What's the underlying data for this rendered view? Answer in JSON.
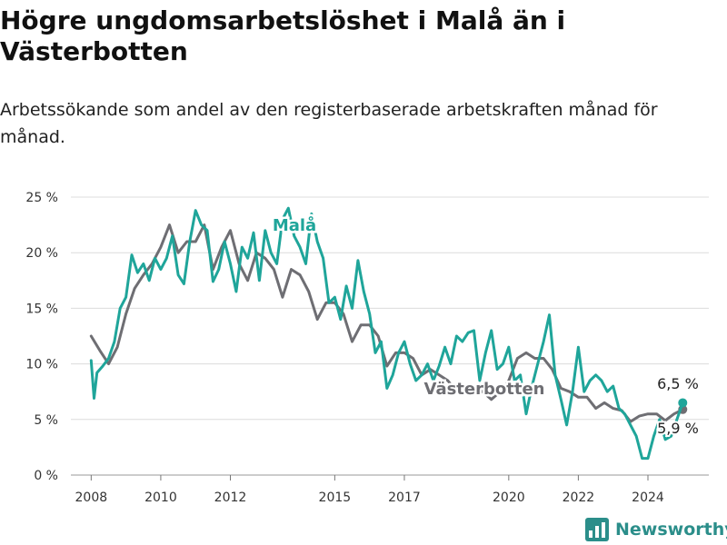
{
  "title": "Högre ungdomsarbetslöshet i Malå än i Västerbotten",
  "subtitle": "Arbetssökande som andel av den registerbaserade arbetskraften månad för månad.",
  "logo": {
    "text": "Newsworthy",
    "icon": "bar-chart-logo-icon",
    "color": "#2b8e8a"
  },
  "chart_data": {
    "type": "line",
    "x_ticks": [
      "2008",
      "2010",
      "2012",
      "2015",
      "2017",
      "2020",
      "2022",
      "2024"
    ],
    "y_ticks": [
      "0 %",
      "5 %",
      "10 %",
      "15 %",
      "20 %",
      "25 %"
    ],
    "ylim": [
      0,
      25
    ],
    "xlim": [
      "2007-06",
      "2025-10"
    ],
    "grid": "horizontal",
    "series": [
      {
        "name": "Västerbotten",
        "color": "#6e6e73",
        "end_label": "5,9 %",
        "points": [
          [
            "2008-01",
            12.5
          ],
          [
            "2008-04",
            11.2
          ],
          [
            "2008-07",
            10.0
          ],
          [
            "2008-10",
            11.5
          ],
          [
            "2009-01",
            14.5
          ],
          [
            "2009-04",
            16.8
          ],
          [
            "2009-07",
            18.0
          ],
          [
            "2009-10",
            19.0
          ],
          [
            "2010-01",
            20.5
          ],
          [
            "2010-04",
            22.5
          ],
          [
            "2010-07",
            20.0
          ],
          [
            "2010-10",
            21.0
          ],
          [
            "2011-01",
            21.0
          ],
          [
            "2011-04",
            22.5
          ],
          [
            "2011-07",
            18.5
          ],
          [
            "2011-10",
            20.5
          ],
          [
            "2012-01",
            22.0
          ],
          [
            "2012-04",
            19.0
          ],
          [
            "2012-07",
            17.5
          ],
          [
            "2012-10",
            20.0
          ],
          [
            "2013-01",
            19.5
          ],
          [
            "2013-04",
            18.5
          ],
          [
            "2013-07",
            16.0
          ],
          [
            "2013-10",
            18.5
          ],
          [
            "2014-01",
            18.0
          ],
          [
            "2014-04",
            16.5
          ],
          [
            "2014-07",
            14.0
          ],
          [
            "2014-10",
            15.5
          ],
          [
            "2015-01",
            15.5
          ],
          [
            "2015-04",
            14.5
          ],
          [
            "2015-07",
            12.0
          ],
          [
            "2015-10",
            13.5
          ],
          [
            "2016-01",
            13.5
          ],
          [
            "2016-04",
            12.5
          ],
          [
            "2016-07",
            9.8
          ],
          [
            "2016-10",
            11.0
          ],
          [
            "2017-01",
            11.0
          ],
          [
            "2017-04",
            10.5
          ],
          [
            "2017-07",
            9.0
          ],
          [
            "2017-10",
            9.5
          ],
          [
            "2018-01",
            9.0
          ],
          [
            "2018-04",
            8.5
          ],
          [
            "2018-07",
            7.5
          ],
          [
            "2018-10",
            8.0
          ],
          [
            "2019-01",
            7.8
          ],
          [
            "2019-04",
            7.5
          ],
          [
            "2019-07",
            6.8
          ],
          [
            "2019-10",
            7.5
          ],
          [
            "2020-01",
            8.5
          ],
          [
            "2020-04",
            10.5
          ],
          [
            "2020-07",
            11.0
          ],
          [
            "2020-10",
            10.5
          ],
          [
            "2021-01",
            10.5
          ],
          [
            "2021-04",
            9.5
          ],
          [
            "2021-07",
            7.8
          ],
          [
            "2021-10",
            7.5
          ],
          [
            "2022-01",
            7.0
          ],
          [
            "2022-04",
            7.0
          ],
          [
            "2022-07",
            6.0
          ],
          [
            "2022-10",
            6.5
          ],
          [
            "2023-01",
            6.0
          ],
          [
            "2023-04",
            5.8
          ],
          [
            "2023-07",
            4.8
          ],
          [
            "2023-10",
            5.3
          ],
          [
            "2024-01",
            5.5
          ],
          [
            "2024-04",
            5.5
          ],
          [
            "2024-07",
            4.9
          ],
          [
            "2024-10",
            5.5
          ],
          [
            "2025-01",
            5.9
          ]
        ]
      },
      {
        "name": "Malå",
        "color": "#1fa59a",
        "end_label": "6,5 %",
        "points": [
          [
            "2008-01",
            10.3
          ],
          [
            "2008-02",
            6.9
          ],
          [
            "2008-03",
            9.2
          ],
          [
            "2008-05",
            9.8
          ],
          [
            "2008-07",
            10.5
          ],
          [
            "2008-09",
            12.0
          ],
          [
            "2008-11",
            15.0
          ],
          [
            "2009-01",
            16.0
          ],
          [
            "2009-03",
            19.8
          ],
          [
            "2009-05",
            18.2
          ],
          [
            "2009-07",
            19.0
          ],
          [
            "2009-09",
            17.5
          ],
          [
            "2009-11",
            19.5
          ],
          [
            "2010-01",
            18.5
          ],
          [
            "2010-03",
            19.5
          ],
          [
            "2010-05",
            21.5
          ],
          [
            "2010-07",
            18.0
          ],
          [
            "2010-09",
            17.2
          ],
          [
            "2010-11",
            21.0
          ],
          [
            "2011-01",
            23.8
          ],
          [
            "2011-03",
            22.5
          ],
          [
            "2011-05",
            22.0
          ],
          [
            "2011-07",
            17.4
          ],
          [
            "2011-09",
            18.5
          ],
          [
            "2011-11",
            21.0
          ],
          [
            "2012-01",
            19.0
          ],
          [
            "2012-03",
            16.5
          ],
          [
            "2012-05",
            20.5
          ],
          [
            "2012-07",
            19.5
          ],
          [
            "2012-09",
            21.8
          ],
          [
            "2012-11",
            17.5
          ],
          [
            "2013-01",
            22.0
          ],
          [
            "2013-03",
            20.0
          ],
          [
            "2013-05",
            19.0
          ],
          [
            "2013-07",
            23.0
          ],
          [
            "2013-09",
            24.0
          ],
          [
            "2013-11",
            21.5
          ],
          [
            "2014-01",
            20.5
          ],
          [
            "2014-03",
            19.0
          ],
          [
            "2014-05",
            23.5
          ],
          [
            "2014-07",
            21.0
          ],
          [
            "2014-09",
            19.5
          ],
          [
            "2014-11",
            15.5
          ],
          [
            "2015-01",
            16.0
          ],
          [
            "2015-03",
            14.0
          ],
          [
            "2015-05",
            17.0
          ],
          [
            "2015-07",
            15.0
          ],
          [
            "2015-09",
            19.3
          ],
          [
            "2015-11",
            16.5
          ],
          [
            "2016-01",
            14.5
          ],
          [
            "2016-03",
            11.0
          ],
          [
            "2016-05",
            12.0
          ],
          [
            "2016-07",
            7.8
          ],
          [
            "2016-09",
            9.0
          ],
          [
            "2016-11",
            11.0
          ],
          [
            "2017-01",
            12.0
          ],
          [
            "2017-03",
            10.0
          ],
          [
            "2017-05",
            8.5
          ],
          [
            "2017-07",
            9.0
          ],
          [
            "2017-09",
            10.0
          ],
          [
            "2017-11",
            8.5
          ],
          [
            "2018-01",
            9.8
          ],
          [
            "2018-03",
            11.5
          ],
          [
            "2018-05",
            10.0
          ],
          [
            "2018-07",
            12.5
          ],
          [
            "2018-09",
            12.0
          ],
          [
            "2018-11",
            12.8
          ],
          [
            "2019-01",
            13.0
          ],
          [
            "2019-03",
            8.5
          ],
          [
            "2019-05",
            11.0
          ],
          [
            "2019-07",
            13.0
          ],
          [
            "2019-09",
            9.5
          ],
          [
            "2019-11",
            10.0
          ],
          [
            "2020-01",
            11.5
          ],
          [
            "2020-03",
            8.5
          ],
          [
            "2020-05",
            9.0
          ],
          [
            "2020-07",
            5.5
          ],
          [
            "2020-09",
            8.0
          ],
          [
            "2020-11",
            10.0
          ],
          [
            "2021-01",
            12.0
          ],
          [
            "2021-03",
            14.4
          ],
          [
            "2021-05",
            9.0
          ],
          [
            "2021-07",
            6.8
          ],
          [
            "2021-09",
            4.5
          ],
          [
            "2021-11",
            7.5
          ],
          [
            "2022-01",
            11.5
          ],
          [
            "2022-03",
            7.5
          ],
          [
            "2022-05",
            8.5
          ],
          [
            "2022-07",
            9.0
          ],
          [
            "2022-09",
            8.5
          ],
          [
            "2022-11",
            7.5
          ],
          [
            "2023-01",
            8.0
          ],
          [
            "2023-03",
            6.0
          ],
          [
            "2023-05",
            5.5
          ],
          [
            "2023-07",
            4.5
          ],
          [
            "2023-09",
            3.5
          ],
          [
            "2023-11",
            1.5
          ],
          [
            "2024-01",
            1.5
          ],
          [
            "2024-03",
            3.5
          ],
          [
            "2024-05",
            5.0
          ],
          [
            "2024-07",
            3.2
          ],
          [
            "2024-09",
            3.5
          ],
          [
            "2024-11",
            5.0
          ],
          [
            "2025-01",
            6.5
          ]
        ]
      }
    ]
  }
}
